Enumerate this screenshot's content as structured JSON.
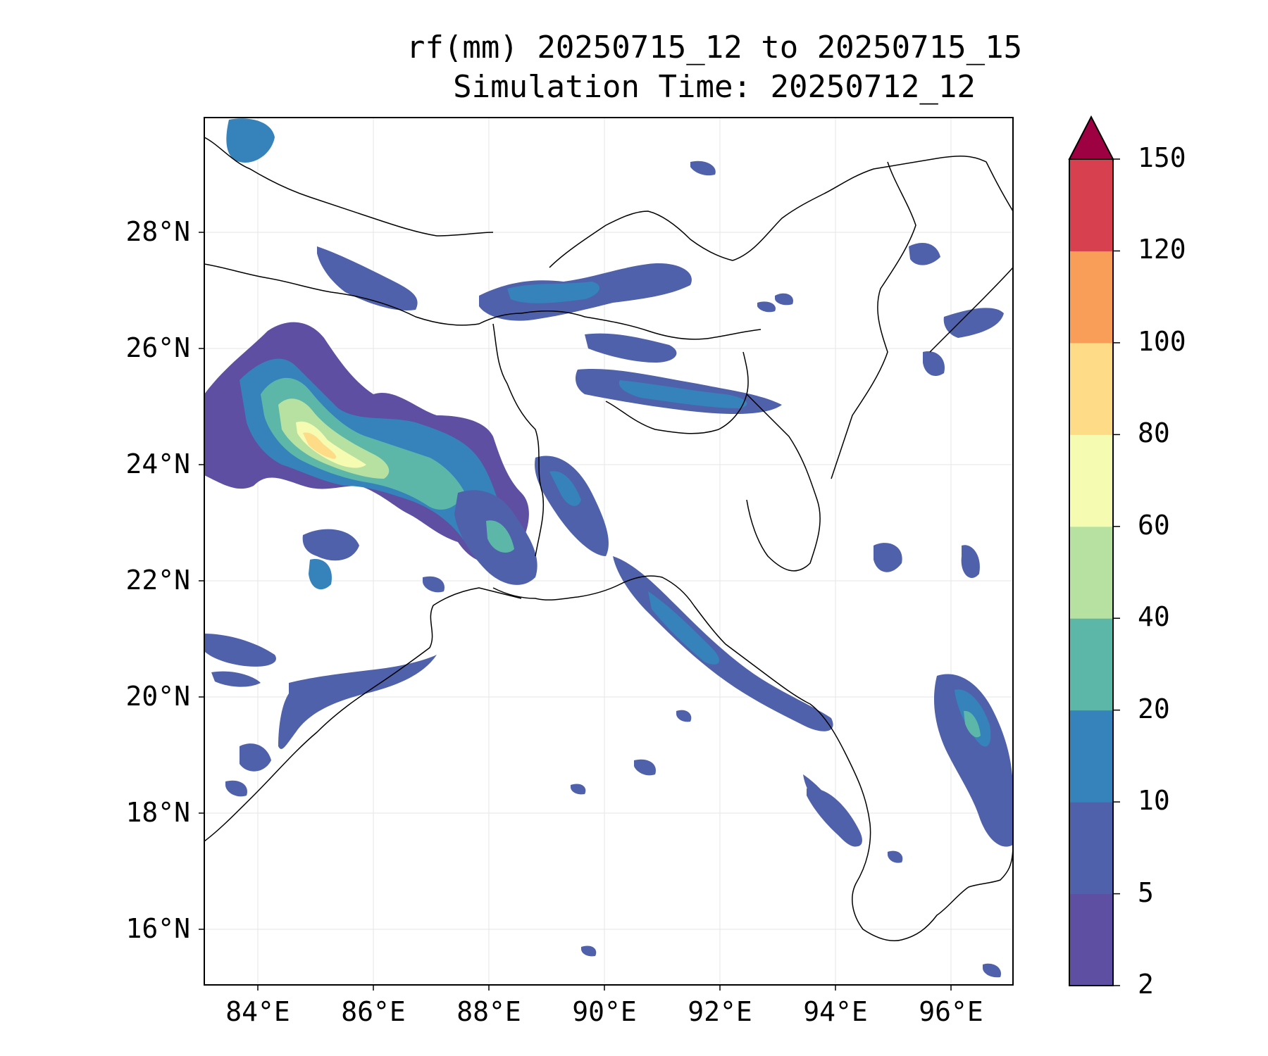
{
  "title": {
    "line1": "rf(mm) 20250715_12 to 20250715_15",
    "line2": "Simulation Time: 20250712_12"
  },
  "map": {
    "lon_range": [
      83.0,
      97.0
    ],
    "lat_range": [
      15.0,
      30.0
    ],
    "x_ticks": [
      "84°E",
      "86°E",
      "88°E",
      "90°E",
      "92°E",
      "94°E",
      "96°E"
    ],
    "y_ticks": [
      "28°N",
      "26°N",
      "24°N",
      "22°N",
      "20°N",
      "18°N",
      "16°N"
    ],
    "gridlines": true,
    "coastlines_and_borders": true
  },
  "colorbar": {
    "ticks": [
      "2",
      "5",
      "10",
      "20",
      "40",
      "60",
      "80",
      "100",
      "120",
      "150"
    ],
    "levels": [
      2,
      5,
      10,
      20,
      40,
      60,
      80,
      100,
      120,
      150
    ],
    "colors": [
      "#5e4fa2",
      "#4f61aa",
      "#3683bb",
      "#5cb7a9",
      "#b7e1a1",
      "#f5fbb1",
      "#fedb86",
      "#f99e59",
      "#d7404e",
      "#9e0142"
    ],
    "extend": "max"
  }
}
